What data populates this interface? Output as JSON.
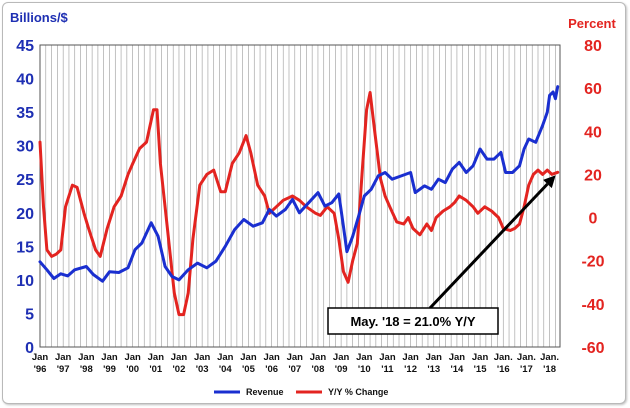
{
  "chart_data": {
    "type": "line",
    "ylabel_left": "Billions/$",
    "ylabel_right": "Percent",
    "ylim_left": [
      0,
      45
    ],
    "ylim_right": [
      -60,
      80
    ],
    "yticks_left": [
      "0",
      "5",
      "10",
      "15",
      "20",
      "25",
      "30",
      "35",
      "40",
      "45"
    ],
    "yticks_right": [
      "-60",
      "-40",
      "-20",
      "0",
      "20",
      "40",
      "60",
      "80"
    ],
    "x_categories": [
      [
        "Jan",
        "'96"
      ],
      [
        "Jan",
        "'97"
      ],
      [
        "Jan",
        "'98"
      ],
      [
        "Jan",
        "'99"
      ],
      [
        "Jan",
        "'00"
      ],
      [
        "Jan",
        "'01"
      ],
      [
        "Jan",
        "'02"
      ],
      [
        "Jan",
        "'03"
      ],
      [
        "Jan",
        "'04"
      ],
      [
        "Jan",
        "'05"
      ],
      [
        "Jan",
        "'06"
      ],
      [
        "Jan",
        "'07"
      ],
      [
        "Jan",
        "'08"
      ],
      [
        "Jan",
        "'09"
      ],
      [
        "Jan",
        "'10"
      ],
      [
        "Jan",
        "'11"
      ],
      [
        "Jan",
        "'12"
      ],
      [
        "Jan",
        "'13"
      ],
      [
        "Jan",
        "'14"
      ],
      [
        "Jan",
        "'15"
      ],
      [
        "Jan.",
        "'16"
      ],
      [
        "Jan.",
        "'17"
      ],
      [
        "Jan.",
        "'18"
      ]
    ],
    "grid": "vertical",
    "series": [
      {
        "name": "Revenue",
        "axis": "left",
        "color": "#1a2fd0",
        "points": [
          [
            1996.0,
            12.7
          ],
          [
            1996.3,
            11.5
          ],
          [
            1996.6,
            10.2
          ],
          [
            1996.9,
            10.9
          ],
          [
            1997.2,
            10.6
          ],
          [
            1997.5,
            11.5
          ],
          [
            1998.0,
            12.0
          ],
          [
            1998.3,
            10.8
          ],
          [
            1998.7,
            9.8
          ],
          [
            1999.0,
            11.2
          ],
          [
            1999.4,
            11.1
          ],
          [
            1999.8,
            11.8
          ],
          [
            2000.1,
            14.5
          ],
          [
            2000.4,
            15.5
          ],
          [
            2000.8,
            18.5
          ],
          [
            2001.1,
            16.5
          ],
          [
            2001.4,
            12.0
          ],
          [
            2001.7,
            10.5
          ],
          [
            2002.0,
            10.0
          ],
          [
            2002.4,
            11.5
          ],
          [
            2002.8,
            12.5
          ],
          [
            2003.2,
            11.8
          ],
          [
            2003.6,
            12.8
          ],
          [
            2004.0,
            15.0
          ],
          [
            2004.4,
            17.5
          ],
          [
            2004.8,
            19.0
          ],
          [
            2005.2,
            18.0
          ],
          [
            2005.6,
            18.5
          ],
          [
            2005.9,
            20.5
          ],
          [
            2006.2,
            19.5
          ],
          [
            2006.6,
            20.5
          ],
          [
            2006.9,
            22.0
          ],
          [
            2007.2,
            20.0
          ],
          [
            2007.6,
            21.5
          ],
          [
            2008.0,
            23.0
          ],
          [
            2008.3,
            21.0
          ],
          [
            2008.6,
            21.5
          ],
          [
            2008.9,
            22.8
          ],
          [
            2009.1,
            18.0
          ],
          [
            2009.25,
            14.2
          ],
          [
            2009.5,
            16.5
          ],
          [
            2009.8,
            20.0
          ],
          [
            2010.0,
            22.5
          ],
          [
            2010.3,
            23.5
          ],
          [
            2010.6,
            25.5
          ],
          [
            2010.9,
            26.0
          ],
          [
            2011.2,
            25.0
          ],
          [
            2011.6,
            25.5
          ],
          [
            2012.0,
            26.0
          ],
          [
            2012.2,
            23.0
          ],
          [
            2012.6,
            24.0
          ],
          [
            2012.9,
            23.5
          ],
          [
            2013.2,
            25.0
          ],
          [
            2013.5,
            24.5
          ],
          [
            2013.8,
            26.5
          ],
          [
            2014.1,
            27.5
          ],
          [
            2014.4,
            26.0
          ],
          [
            2014.7,
            27.0
          ],
          [
            2015.0,
            29.5
          ],
          [
            2015.3,
            28.0
          ],
          [
            2015.6,
            28.0
          ],
          [
            2015.9,
            29.0
          ],
          [
            2016.1,
            26.0
          ],
          [
            2016.4,
            26.0
          ],
          [
            2016.7,
            27.0
          ],
          [
            2016.9,
            29.5
          ],
          [
            2017.1,
            31.0
          ],
          [
            2017.4,
            30.5
          ],
          [
            2017.7,
            33.0
          ],
          [
            2017.9,
            35.0
          ],
          [
            2018.0,
            37.5
          ],
          [
            2018.15,
            38.0
          ],
          [
            2018.25,
            37.0
          ],
          [
            2018.35,
            38.8
          ]
        ]
      },
      {
        "name": "Y/Y % Change",
        "axis": "right",
        "color": "#e32420",
        "points": [
          [
            1996.0,
            35
          ],
          [
            1996.15,
            5
          ],
          [
            1996.3,
            -15
          ],
          [
            1996.5,
            -18
          ],
          [
            1996.7,
            -17
          ],
          [
            1996.9,
            -15
          ],
          [
            1997.1,
            5
          ],
          [
            1997.4,
            15
          ],
          [
            1997.6,
            14
          ],
          [
            1997.9,
            2
          ],
          [
            1998.1,
            -5
          ],
          [
            1998.4,
            -15
          ],
          [
            1998.6,
            -18
          ],
          [
            1998.9,
            -5
          ],
          [
            1999.2,
            5
          ],
          [
            1999.5,
            10
          ],
          [
            1999.8,
            20
          ],
          [
            2000.0,
            25
          ],
          [
            2000.3,
            32
          ],
          [
            2000.6,
            35
          ],
          [
            2000.9,
            50
          ],
          [
            2001.05,
            50
          ],
          [
            2001.2,
            25
          ],
          [
            2001.5,
            -5
          ],
          [
            2001.8,
            -35
          ],
          [
            2002.0,
            -45
          ],
          [
            2002.2,
            -45
          ],
          [
            2002.4,
            -35
          ],
          [
            2002.6,
            -10
          ],
          [
            2002.9,
            15
          ],
          [
            2003.2,
            20
          ],
          [
            2003.5,
            22
          ],
          [
            2003.8,
            12
          ],
          [
            2004.0,
            12
          ],
          [
            2004.3,
            25
          ],
          [
            2004.6,
            30
          ],
          [
            2004.9,
            38
          ],
          [
            2005.1,
            30
          ],
          [
            2005.4,
            15
          ],
          [
            2005.7,
            10
          ],
          [
            2005.9,
            2
          ],
          [
            2006.2,
            5
          ],
          [
            2006.5,
            8
          ],
          [
            2006.9,
            10
          ],
          [
            2007.2,
            8
          ],
          [
            2007.5,
            5
          ],
          [
            2007.9,
            2
          ],
          [
            2008.1,
            1
          ],
          [
            2008.4,
            5
          ],
          [
            2008.7,
            2
          ],
          [
            2008.9,
            -10
          ],
          [
            2009.1,
            -25
          ],
          [
            2009.3,
            -30
          ],
          [
            2009.5,
            -20
          ],
          [
            2009.7,
            -12
          ],
          [
            2009.9,
            20
          ],
          [
            2010.1,
            50
          ],
          [
            2010.25,
            58
          ],
          [
            2010.45,
            40
          ],
          [
            2010.7,
            18
          ],
          [
            2010.9,
            10
          ],
          [
            2011.1,
            5
          ],
          [
            2011.4,
            -2
          ],
          [
            2011.7,
            -3
          ],
          [
            2011.9,
            0
          ],
          [
            2012.1,
            -5
          ],
          [
            2012.4,
            -8
          ],
          [
            2012.7,
            -3
          ],
          [
            2012.9,
            -6
          ],
          [
            2013.1,
            0
          ],
          [
            2013.4,
            3
          ],
          [
            2013.7,
            5
          ],
          [
            2013.9,
            7
          ],
          [
            2014.1,
            10
          ],
          [
            2014.4,
            8
          ],
          [
            2014.7,
            5
          ],
          [
            2014.9,
            2
          ],
          [
            2015.2,
            5
          ],
          [
            2015.5,
            3
          ],
          [
            2015.8,
            0
          ],
          [
            2016.0,
            -5
          ],
          [
            2016.3,
            -6
          ],
          [
            2016.5,
            -5
          ],
          [
            2016.7,
            -3
          ],
          [
            2016.9,
            5
          ],
          [
            2017.1,
            15
          ],
          [
            2017.3,
            20
          ],
          [
            2017.5,
            22
          ],
          [
            2017.7,
            20
          ],
          [
            2017.9,
            22
          ],
          [
            2018.1,
            20
          ],
          [
            2018.35,
            21
          ]
        ]
      }
    ],
    "legend": {
      "placement": "bottom-center",
      "entries": [
        "Revenue",
        "Y/Y % Change"
      ]
    },
    "annotation": {
      "text": "May. '18 = 21.0% Y/Y",
      "target": [
        2018.35,
        21
      ]
    }
  }
}
